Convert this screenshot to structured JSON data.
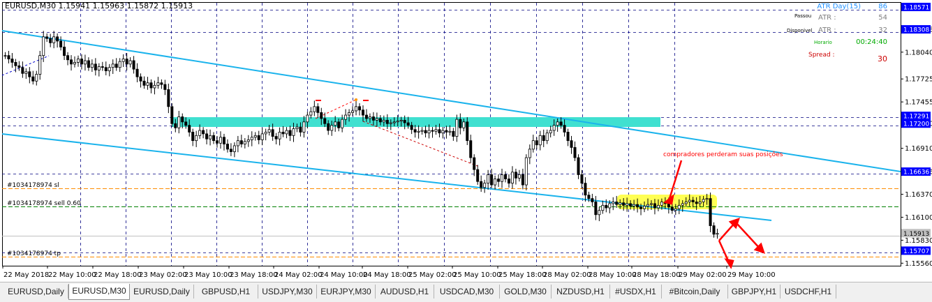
{
  "symbol_header": "EURUSD,M30  1.15941 1.15963 1.15872 1.15913",
  "info_panel": {
    "atr_day_label": "ATR Day(15)",
    "atr_day_value": "86",
    "passou_label": "Passou",
    "atr_label": "ATR :",
    "passou_value": "54",
    "disponivel_label": "Disponivel",
    "atr_label2": "ATR :",
    "disponivel_value": "32",
    "horario_label": "Horario",
    "horario_value": "00:24:40",
    "spread_label": "Spread :",
    "spread_value": "30"
  },
  "annotation_text": "compradores perderam suas posições",
  "order_labels": {
    "sl": "#1034178974 sl",
    "sell": "#1034178974 sell 0.60",
    "tp": "#1034178974 tp"
  },
  "price_axis": {
    "ticks": [
      "1.18308",
      "1.18040",
      "1.17725",
      "1.17455",
      "1.17200",
      "1.16910",
      "1.16636",
      "1.16370",
      "1.16100",
      "1.15830",
      "1.15560"
    ],
    "highlighted": [
      {
        "value": "1.18571",
        "color": "#0000ff"
      },
      {
        "value": "1.18308",
        "color": "#0000ff"
      },
      {
        "value": "1.17291",
        "color": "#0000ff"
      },
      {
        "value": "1.17200",
        "color": "#0000ff"
      },
      {
        "value": "1.16636",
        "color": "#0000ff"
      },
      {
        "value": "1.15913",
        "color": "#c0c0c0"
      },
      {
        "value": "1.15707",
        "color": "#0000ff"
      }
    ]
  },
  "time_axis": [
    "22 May 2018",
    "22 May 10:00",
    "22 May 18:00",
    "23 May 02:00",
    "23 May 10:00",
    "23 May 18:00",
    "24 May 02:00",
    "24 May 10:00",
    "24 May 18:00",
    "25 May 02:00",
    "25 May 10:00",
    "25 May 18:00",
    "28 May 02:00",
    "28 May 10:00",
    "28 May 18:00",
    "29 May 02:00",
    "29 May 10:00"
  ],
  "tabs": [
    "EURUSD,Daily",
    "EURUSD,M30",
    "EURUSD,Daily",
    "GBPUSD,H1",
    "USDJPY,M30",
    "EURJPY,M30",
    "AUDUSD,H1",
    "USDCAD,M30",
    "GOLD,M30",
    "NZDUSD,H1",
    "#USDX,H1",
    "#Bitcoin,Daily",
    "GBPJPY,H1",
    "USDCHF,H1"
  ],
  "active_tab": 1,
  "colors": {
    "channel": "#1ab3ec",
    "zone": "#40e0d0",
    "highlight": "#ffff40",
    "arrow": "#ff0000",
    "grid": "#000080",
    "order_sl": "#ff8c00",
    "order_sell": "#008000"
  },
  "chart_data": {
    "type": "candlestick",
    "symbol": "EURUSD",
    "timeframe": "M30",
    "ohlc_last": {
      "open": 1.15941,
      "high": 1.15963,
      "low": 1.15872,
      "close": 1.15913
    },
    "ylim": [
      1.1553,
      1.1862
    ],
    "close_series": [
      1.18,
      1.1796,
      1.1792,
      1.1788,
      1.1786,
      1.1779,
      1.1781,
      1.1775,
      1.177,
      1.1778,
      1.18,
      1.1822,
      1.182,
      1.1815,
      1.1822,
      1.1817,
      1.181,
      1.18,
      1.1795,
      1.179,
      1.1792,
      1.1796,
      1.179,
      1.1794,
      1.1786,
      1.179,
      1.1783,
      1.1787,
      1.1786,
      1.1782,
      1.1786,
      1.179,
      1.1786,
      1.1793,
      1.1796,
      1.179,
      1.1794,
      1.1784,
      1.1775,
      1.177,
      1.1765,
      1.1768,
      1.1762,
      1.1765,
      1.1768,
      1.1766,
      1.176,
      1.174,
      1.172,
      1.1715,
      1.1728,
      1.1722,
      1.1718,
      1.171,
      1.17,
      1.1706,
      1.1712,
      1.1708,
      1.1702,
      1.1706,
      1.17,
      1.1697,
      1.1704,
      1.1696,
      1.169,
      1.1687,
      1.1694,
      1.17,
      1.1696,
      1.1699,
      1.1701,
      1.1704,
      1.1706,
      1.1701,
      1.1708,
      1.171,
      1.1713,
      1.1705,
      1.1702,
      1.171,
      1.1708,
      1.1712,
      1.1706,
      1.1714,
      1.1716,
      1.171,
      1.1722,
      1.173,
      1.1734,
      1.174,
      1.1733,
      1.1726,
      1.172,
      1.1712,
      1.1718,
      1.1722,
      1.1715,
      1.1725,
      1.173,
      1.1733,
      1.1735,
      1.174,
      1.1736,
      1.173,
      1.1726,
      1.1728,
      1.1724,
      1.1726,
      1.1722,
      1.1724,
      1.172,
      1.1721,
      1.1722,
      1.1723,
      1.1724,
      1.1721,
      1.1718,
      1.1713,
      1.171,
      1.1711,
      1.1712,
      1.1709,
      1.1712,
      1.1711,
      1.1713,
      1.1709,
      1.1712,
      1.171,
      1.1711,
      1.1705,
      1.1725,
      1.1715,
      1.1722,
      1.17,
      1.168,
      1.1666,
      1.1652,
      1.1645,
      1.165,
      1.166,
      1.1648,
      1.1655,
      1.1652,
      1.166,
      1.1655,
      1.165,
      1.1663,
      1.1656,
      1.166,
      1.1648,
      1.168,
      1.169,
      1.17,
      1.1695,
      1.1706,
      1.17,
      1.1709,
      1.1712,
      1.1718,
      1.1722,
      1.1718,
      1.171,
      1.17,
      1.1692,
      1.168,
      1.166,
      1.165,
      1.1636,
      1.1632,
      1.1628,
      1.1613,
      1.1618,
      1.1624,
      1.1621,
      1.1626,
      1.1628,
      1.1625,
      1.1627,
      1.1624,
      1.1626,
      1.1623,
      1.1625,
      1.1622,
      1.162,
      1.1623,
      1.1625,
      1.1626,
      1.1621,
      1.1624,
      1.1628,
      1.1626,
      1.1622,
      1.1618,
      1.162,
      1.1624,
      1.1626,
      1.1628,
      1.163,
      1.1628,
      1.1626,
      1.1628,
      1.1631,
      1.1632,
      1.16,
      1.159,
      1.1591
    ]
  }
}
